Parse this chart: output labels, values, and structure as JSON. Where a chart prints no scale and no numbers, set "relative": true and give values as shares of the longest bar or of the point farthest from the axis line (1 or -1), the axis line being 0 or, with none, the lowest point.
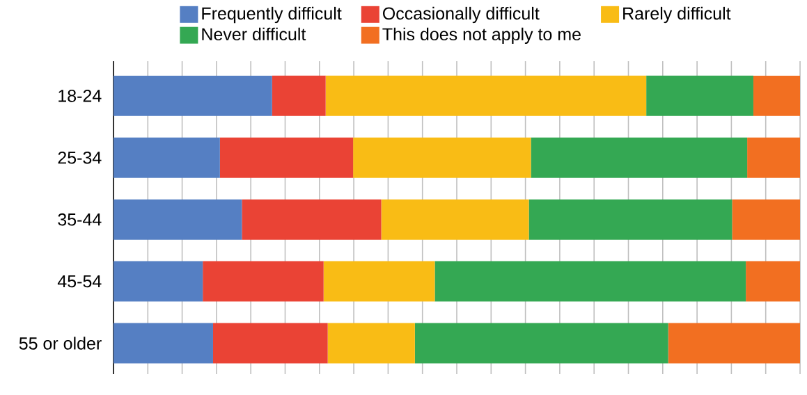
{
  "chart_data": {
    "type": "bar",
    "orientation": "horizontal",
    "stacked": true,
    "relative": true,
    "grid": "x",
    "legend": "top",
    "categories": [
      "18-24",
      "25-34",
      "35-44",
      "45-54",
      "55 or older"
    ],
    "series": [
      {
        "name": "Frequently difficult",
        "color": "#557fc3",
        "values": [
          0.231,
          0.155,
          0.187,
          0.13,
          0.145
        ]
      },
      {
        "name": "Occasionally difficult",
        "color": "#ea4335",
        "values": [
          0.078,
          0.194,
          0.203,
          0.176,
          0.167
        ]
      },
      {
        "name": "Rarely difficult",
        "color": "#f9bc15",
        "values": [
          0.467,
          0.259,
          0.215,
          0.162,
          0.127
        ]
      },
      {
        "name": "Never difficult",
        "color": "#34a853",
        "values": [
          0.156,
          0.315,
          0.296,
          0.453,
          0.369
        ]
      },
      {
        "name": "This does not apply to me",
        "color": "#f26f21",
        "values": [
          0.068,
          0.077,
          0.099,
          0.079,
          0.192
        ]
      }
    ]
  }
}
